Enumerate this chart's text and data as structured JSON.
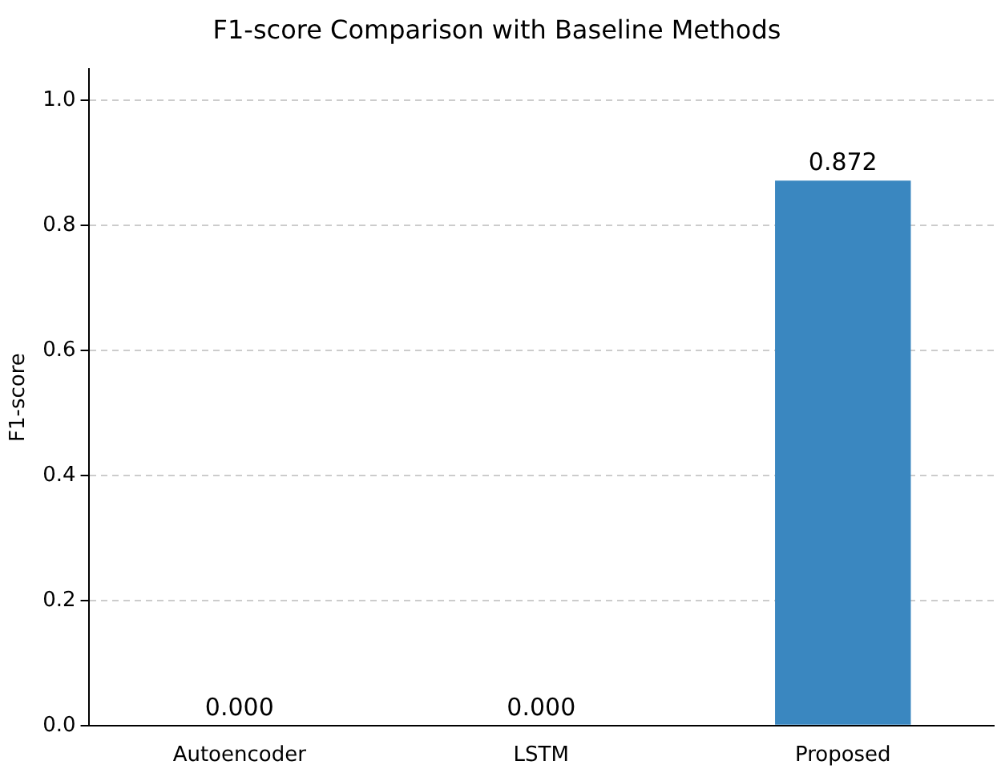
{
  "chart_data": {
    "type": "bar",
    "title": "F1-score Comparison with Baseline Methods",
    "ylabel": "F1-score",
    "categories": [
      "Autoencoder",
      "LSTM",
      "Proposed"
    ],
    "values": [
      0.0,
      0.0,
      0.872
    ],
    "color": "#3a87c0",
    "value_labels": [
      "0.000",
      "0.000",
      "0.872"
    ],
    "ylim": [
      0,
      1.05
    ],
    "yticks": [
      {
        "value": 0,
        "label": "0.0"
      },
      {
        "value": 0.2,
        "label": "0.2"
      },
      {
        "value": 0.4,
        "label": "0.4"
      },
      {
        "value": 0.6,
        "label": "0.6"
      },
      {
        "value": 0.8,
        "label": "0.8"
      },
      {
        "value": 1.0,
        "label": "1.0"
      }
    ],
    "grid": "y",
    "legend": false
  }
}
